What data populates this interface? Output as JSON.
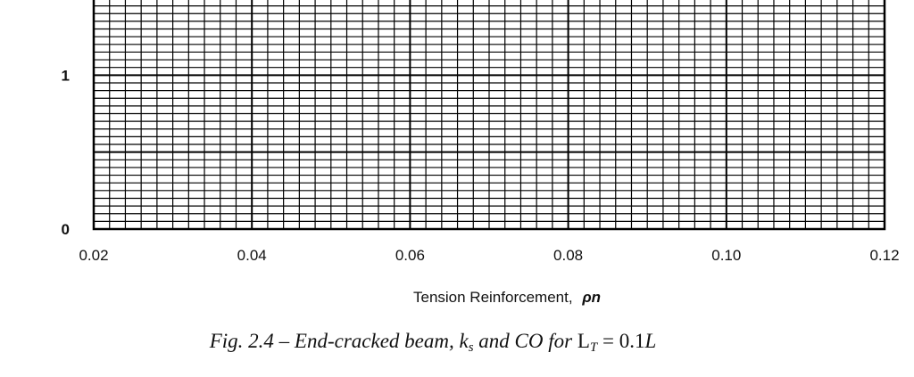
{
  "chart_data": {
    "type": "line",
    "title": "",
    "xlabel": "Tension Reinforcement,",
    "xlabel_symbol": "ρn",
    "ylabel": "",
    "x_ticks": [
      "0.02",
      "0.04",
      "0.06",
      "0.08",
      "0.10",
      "0.12"
    ],
    "y_ticks_visible": [
      "0",
      "1"
    ],
    "xlim": [
      0.02,
      0.12
    ],
    "ylim": [
      0,
      1.5
    ],
    "grid": true,
    "series": []
  },
  "caption": {
    "fig": "Fig. 2.4 –",
    "text": "End-cracked beam,",
    "k": "k",
    "k_sub": "s",
    "and_co": "and CO for",
    "L": "L",
    "L_sub": "T",
    "eq": "= 0.1",
    "L_end": "L"
  }
}
